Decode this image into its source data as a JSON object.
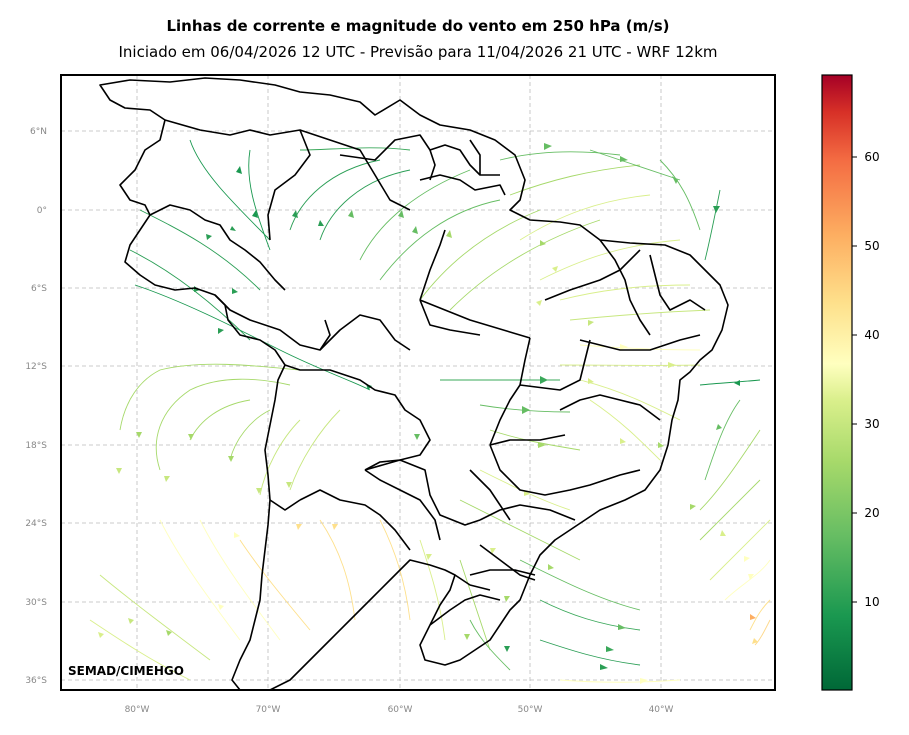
{
  "title": "Linhas de corrente e magnitude do vento em 250 hPa (m/s)",
  "subtitle": "Iniciado em 06/04/2026 12 UTC - Previsão para 11/04/2026 21 UTC - WRF 12km",
  "credit": "SEMAD/CIMEHGO",
  "map": {
    "lat_labels": [
      "6°N",
      "0°",
      "6°S",
      "12°S",
      "18°S",
      "24°S",
      "30°S",
      "36°S"
    ],
    "lon_labels": [
      "80°W",
      "70°W",
      "60°W",
      "50°W",
      "40°W"
    ],
    "grid": true
  },
  "colorbar": {
    "ticks": [
      "10",
      "20",
      "30",
      "40",
      "50",
      "60"
    ],
    "colormap": "RdYlGn_r",
    "min": 0,
    "max": 70
  }
}
